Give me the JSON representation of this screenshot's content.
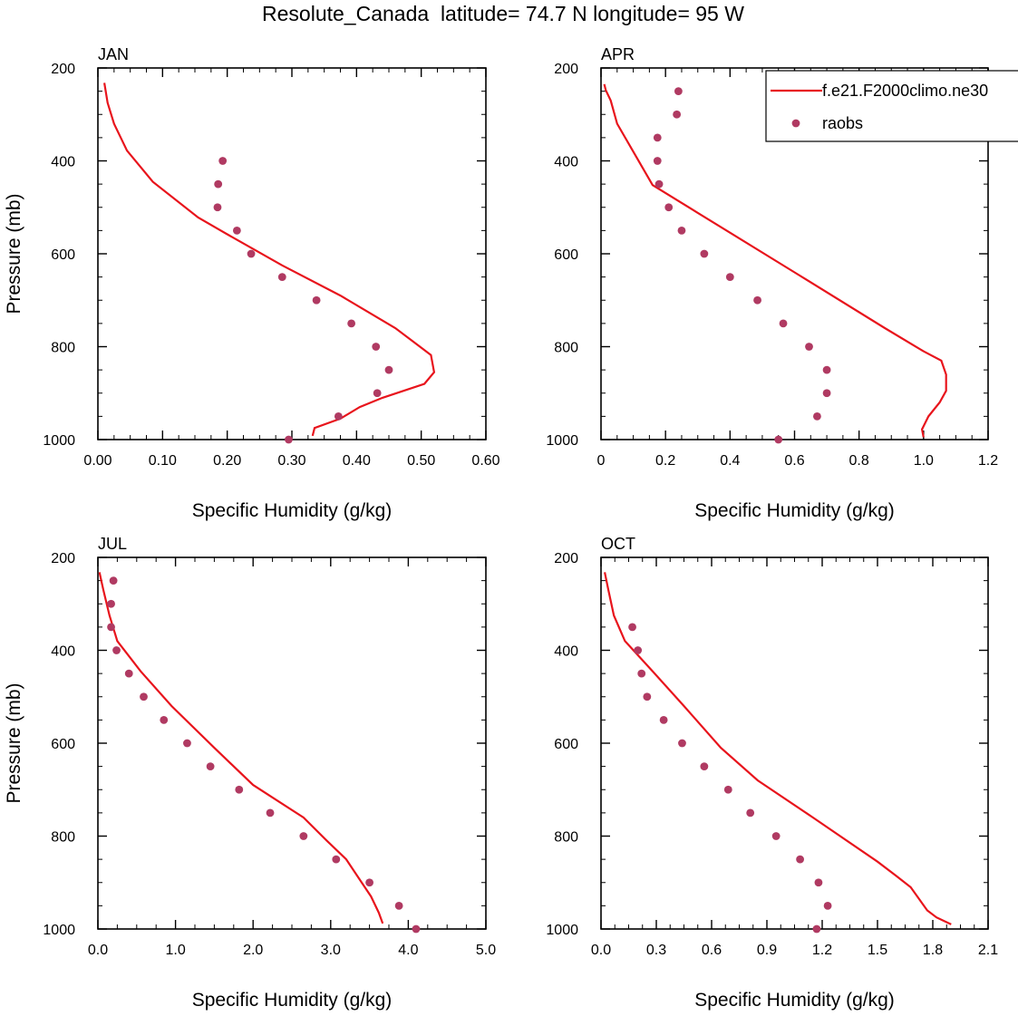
{
  "title": "Resolute_Canada  latitude= 74.7 N longitude= 95 W",
  "legend": {
    "model_label": "f.e21.F2000climo.ne30",
    "obs_label": "raobs"
  },
  "colors": {
    "model_line": "#e8141c",
    "obs_marker": "#b03a62",
    "axis": "#000000"
  },
  "chart_data": [
    {
      "type": "line+scatter",
      "panel_label": "JAN",
      "xlabel": "Specific Humidity (g/kg)",
      "ylabel": "Pressure (mb)",
      "xlim": [
        0,
        0.6
      ],
      "ylim": [
        200,
        1000
      ],
      "y_inverted": true,
      "xticks": [
        "0.00",
        "0.10",
        "0.20",
        "0.30",
        "0.40",
        "0.50",
        "0.60"
      ],
      "yticks": [
        "200",
        "400",
        "600",
        "800",
        "1000"
      ],
      "model": {
        "name": "f.e21.F2000climo.ne30",
        "x": [
          0.332,
          0.335,
          0.375,
          0.405,
          0.44,
          0.505,
          0.52,
          0.515,
          0.46,
          0.375,
          0.285,
          0.2,
          0.155,
          0.085,
          0.045,
          0.025,
          0.015,
          0.01
        ],
        "y": [
          992,
          975,
          955,
          930,
          910,
          880,
          855,
          818,
          760,
          690,
          625,
          558,
          522,
          445,
          378,
          320,
          275,
          232
        ]
      },
      "obs": {
        "name": "raobs",
        "x": [
          0.193,
          0.186,
          0.185,
          0.215,
          0.237,
          0.285,
          0.338,
          0.392,
          0.43,
          0.45,
          0.432,
          0.372,
          0.295
        ],
        "y": [
          400,
          450,
          500,
          550,
          600,
          650,
          700,
          750,
          800,
          850,
          900,
          950,
          1000
        ]
      }
    },
    {
      "type": "line+scatter",
      "panel_label": "APR",
      "xlabel": "Specific Humidity (g/kg)",
      "ylabel": "",
      "xlim": [
        0,
        1.2
      ],
      "ylim": [
        200,
        1000
      ],
      "y_inverted": true,
      "xticks": [
        "0",
        "0.2",
        "0.4",
        "0.6",
        "0.8",
        "1.0",
        "1.2"
      ],
      "yticks": [
        "200",
        "400",
        "600",
        "800",
        "1000"
      ],
      "model": {
        "name": "f.e21.F2000climo.ne30",
        "x": [
          1.0,
          0.995,
          1.015,
          1.05,
          1.07,
          1.07,
          1.055,
          1.0,
          0.88,
          0.6,
          0.3,
          0.16,
          0.1,
          0.05,
          0.03,
          0.015,
          0.01
        ],
        "y": [
          995,
          978,
          950,
          920,
          895,
          860,
          830,
          810,
          760,
          640,
          512,
          452,
          380,
          320,
          270,
          248,
          235
        ]
      },
      "obs": {
        "name": "raobs",
        "x": [
          0.24,
          0.235,
          0.175,
          0.175,
          0.18,
          0.21,
          0.25,
          0.32,
          0.4,
          0.485,
          0.565,
          0.645,
          0.7,
          0.7,
          0.67,
          0.55
        ],
        "y": [
          250,
          300,
          350,
          400,
          450,
          500,
          550,
          600,
          650,
          700,
          750,
          800,
          850,
          900,
          950,
          1000
        ]
      }
    },
    {
      "type": "line+scatter",
      "panel_label": "JUL",
      "xlabel": "Specific Humidity (g/kg)",
      "ylabel": "Pressure (mb)",
      "xlim": [
        0,
        5.0
      ],
      "ylim": [
        200,
        1000
      ],
      "y_inverted": true,
      "xticks": [
        "0.0",
        "1.0",
        "2.0",
        "3.0",
        "4.0",
        "5.0"
      ],
      "yticks": [
        "200",
        "400",
        "600",
        "800",
        "1000"
      ],
      "model": {
        "name": "f.e21.F2000climo.ne30",
        "x": [
          3.67,
          3.62,
          3.52,
          3.4,
          3.2,
          2.95,
          2.65,
          2.0,
          1.5,
          0.95,
          0.55,
          0.25,
          0.15,
          0.07,
          0.02
        ],
        "y": [
          988,
          965,
          930,
          900,
          850,
          810,
          760,
          690,
          610,
          520,
          445,
          380,
          325,
          270,
          232
        ]
      },
      "obs": {
        "name": "raobs",
        "x": [
          0.2,
          0.17,
          0.17,
          0.24,
          0.4,
          0.59,
          0.85,
          1.15,
          1.45,
          1.82,
          2.22,
          2.65,
          3.07,
          3.5,
          3.88,
          4.1
        ],
        "y": [
          250,
          300,
          350,
          400,
          450,
          500,
          550,
          600,
          650,
          700,
          750,
          800,
          850,
          900,
          950,
          1000
        ]
      }
    },
    {
      "type": "line+scatter",
      "panel_label": "OCT",
      "xlabel": "Specific Humidity (g/kg)",
      "ylabel": "",
      "xlim": [
        0,
        2.1
      ],
      "ylim": [
        200,
        1000
      ],
      "y_inverted": true,
      "xticks": [
        "0.0",
        "0.3",
        "0.6",
        "0.9",
        "1.2",
        "1.5",
        "1.8",
        "2.1"
      ],
      "yticks": [
        "200",
        "400",
        "600",
        "800",
        "1000"
      ],
      "model": {
        "name": "f.e21.F2000climo.ne30",
        "x": [
          1.9,
          1.82,
          1.77,
          1.68,
          1.6,
          1.5,
          1.15,
          0.85,
          0.65,
          0.45,
          0.28,
          0.13,
          0.07,
          0.04,
          0.02
        ],
        "y": [
          990,
          975,
          960,
          910,
          885,
          855,
          760,
          680,
          610,
          520,
          445,
          380,
          325,
          270,
          232
        ]
      },
      "obs": {
        "name": "raobs",
        "x": [
          0.17,
          0.2,
          0.22,
          0.25,
          0.34,
          0.44,
          0.56,
          0.69,
          0.81,
          0.95,
          1.08,
          1.18,
          1.23,
          1.17
        ],
        "y": [
          350,
          400,
          450,
          500,
          550,
          600,
          650,
          700,
          750,
          800,
          850,
          900,
          950,
          1000
        ]
      }
    }
  ]
}
